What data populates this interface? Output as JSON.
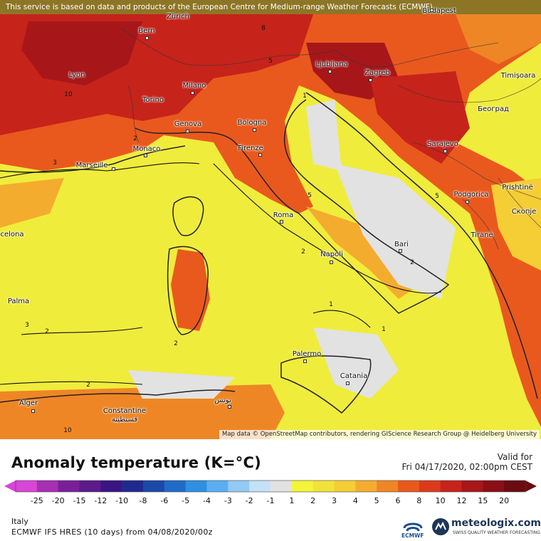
{
  "banner": {
    "text": "This service is based on data and products of the European Centre for Medium-range Weather Forecasts (ECMWF)"
  },
  "attribution": {
    "text": "Map data © OpenStreetMap contributors, rendering GIScience Research Group @ Heidelberg University"
  },
  "cities": [
    {
      "key": "budapest",
      "label": "Budapest"
    },
    {
      "key": "zurich",
      "label": "Zürich"
    },
    {
      "key": "bern",
      "label": "Bern"
    },
    {
      "key": "lyon",
      "label": "Lyon"
    },
    {
      "key": "milano",
      "label": "Milano"
    },
    {
      "key": "torino",
      "label": "Torino"
    },
    {
      "key": "ljubljana",
      "label": "Ljubljana"
    },
    {
      "key": "zagreb",
      "label": "Zagreb"
    },
    {
      "key": "timisoara",
      "label": "Timișoara"
    },
    {
      "key": "beograd",
      "label": "Београд"
    },
    {
      "key": "genova",
      "label": "Genova"
    },
    {
      "key": "bologna",
      "label": "Bologna"
    },
    {
      "key": "monaco",
      "label": "Monaco"
    },
    {
      "key": "marseille",
      "label": "Marseille"
    },
    {
      "key": "firenze",
      "label": "Firenze"
    },
    {
      "key": "sarajevo",
      "label": "Sarajevo"
    },
    {
      "key": "podgorica",
      "label": "Podgorica"
    },
    {
      "key": "pristine",
      "label": "Prishtinë"
    },
    {
      "key": "skopje",
      "label": "Скопје"
    },
    {
      "key": "tirane",
      "label": "Tiranë"
    },
    {
      "key": "barcelona",
      "label": "celona"
    },
    {
      "key": "roma",
      "label": "Roma"
    },
    {
      "key": "bari",
      "label": "Bari"
    },
    {
      "key": "napoli",
      "label": "Napoli"
    },
    {
      "key": "palma",
      "label": "Palma"
    },
    {
      "key": "palermo",
      "label": "Palermo"
    },
    {
      "key": "catania",
      "label": "Catania"
    },
    {
      "key": "alger",
      "label": "Alger"
    },
    {
      "key": "constantine",
      "label": "Constantine"
    },
    {
      "key": "constantine_ar",
      "label": "قسنطينة"
    },
    {
      "key": "tunis",
      "label": "تونس"
    }
  ],
  "contour_labels": [
    "8",
    "5",
    "10",
    "1",
    "5",
    "3",
    "2",
    "5",
    "2",
    "2",
    "2",
    "1",
    "3",
    "2",
    "2",
    "1",
    "10"
  ],
  "legend": {
    "title": "Anomaly temperature (K=°C)",
    "valid_label": "Valid for",
    "valid_date": "Fri 04/17/2020, 02:00pm CEST",
    "ticks": [
      "-25",
      "-20",
      "-15",
      "-12",
      "-10",
      "-8",
      "-6",
      "-5",
      "-4",
      "-3",
      "-2",
      "-1",
      "1",
      "2",
      "3",
      "4",
      "5",
      "6",
      "8",
      "10",
      "12",
      "15",
      "20"
    ],
    "colors": [
      "#d845d8",
      "#a62fb3",
      "#7a1f9a",
      "#5c1a8c",
      "#3b1585",
      "#1f2a8f",
      "#1c48a8",
      "#1f6bc8",
      "#2f8fe2",
      "#5aaef0",
      "#93c9f5",
      "#c4e1f6",
      "#e2e2e2",
      "#f3f53a",
      "#f1e23a",
      "#f5cd34",
      "#f4ac2e",
      "#ef8626",
      "#e9591e",
      "#dc3a1b",
      "#c6231b",
      "#a7171a",
      "#8a0f16",
      "#6b0b12"
    ]
  },
  "info": {
    "region": "Italy",
    "model": "ECMWF IFS HRES (10 days) from 04/08/2020/00z"
  },
  "branding": {
    "ecmwf": "ECMWF",
    "meteologix": "meteologix.com",
    "meteologix_sub": "SWISS QUALITY WEATHER FORECASTING"
  }
}
